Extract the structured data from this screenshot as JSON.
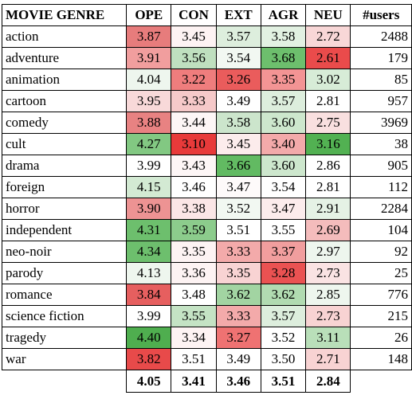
{
  "table": {
    "headers": [
      "MOVIE GENRE",
      "OPE",
      "CON",
      "EXT",
      "AGR",
      "NEU",
      "#users"
    ],
    "rows": [
      {
        "genre": "action",
        "values": [
          "3.87",
          "3.45",
          "3.57",
          "3.58",
          "2.72"
        ],
        "users": "2488",
        "colors": [
          "#e77c7c",
          "#fdf3f3",
          "#ddeedd",
          "#e2f1e2",
          "#f8d7d7"
        ]
      },
      {
        "genre": "adventure",
        "values": [
          "3.91",
          "3.56",
          "3.54",
          "3.68",
          "2.61"
        ],
        "users": "179",
        "colors": [
          "#f19e9e",
          "#bfe0bf",
          "#f2f8f2",
          "#6dbf6d",
          "#ea4b4b"
        ]
      },
      {
        "genre": "animation",
        "values": [
          "4.04",
          "3.22",
          "3.26",
          "3.35",
          "3.02"
        ],
        "users": "85",
        "colors": [
          "#eef6ee",
          "#ef7d7d",
          "#ea5c5c",
          "#f39494",
          "#d7ecd7"
        ]
      },
      {
        "genre": "cartoon",
        "values": [
          "3.95",
          "3.33",
          "3.49",
          "3.57",
          "2.81"
        ],
        "users": "957",
        "colors": [
          "#f8d9d9",
          "#f6c9c9",
          "#ffffff",
          "#ddeedd",
          "#ffffff"
        ]
      },
      {
        "genre": "comedy",
        "values": [
          "3.88",
          "3.44",
          "3.58",
          "3.60",
          "2.75"
        ],
        "users": "3969",
        "colors": [
          "#e88282",
          "#fdf6f6",
          "#cce5cc",
          "#cde7cd",
          "#f9e0e0"
        ]
      },
      {
        "genre": "cult",
        "values": [
          "4.27",
          "3.10",
          "3.45",
          "3.40",
          "3.16"
        ],
        "users": "38",
        "colors": [
          "#82c882",
          "#e83a3a",
          "#fcecec",
          "#f3aaaa",
          "#52b152"
        ]
      },
      {
        "genre": "drama",
        "values": [
          "3.99",
          "3.43",
          "3.66",
          "3.60",
          "2.86"
        ],
        "users": "905",
        "colors": [
          "#ffffff",
          "#fdf6f6",
          "#62ba62",
          "#cde7cd",
          "#ffffff"
        ]
      },
      {
        "genre": "foreign",
        "values": [
          "4.15",
          "3.46",
          "3.47",
          "3.54",
          "2.81"
        ],
        "users": "112",
        "colors": [
          "#d3ead3",
          "#ffffff",
          "#fefafa",
          "#ffffff",
          "#ffffff"
        ]
      },
      {
        "genre": "horror",
        "values": [
          "3.90",
          "3.38",
          "3.52",
          "3.47",
          "2.91"
        ],
        "users": "2284",
        "colors": [
          "#ed9393",
          "#fbe6e6",
          "#f2f8f2",
          "#fcecec",
          "#e5f2e5"
        ]
      },
      {
        "genre": "independent",
        "values": [
          "4.31",
          "3.59",
          "3.51",
          "3.55",
          "2.69"
        ],
        "users": "104",
        "colors": [
          "#6dbf6d",
          "#8ccc8c",
          "#ffffff",
          "#ffffff",
          "#f4bcbc"
        ]
      },
      {
        "genre": "neo-noir",
        "values": [
          "4.34",
          "3.35",
          "3.33",
          "3.37",
          "2.97"
        ],
        "users": "92",
        "colors": [
          "#6dbf6d",
          "#fdf3f3",
          "#f3aaaa",
          "#f19e9e",
          "#eef6ee"
        ]
      },
      {
        "genre": "parody",
        "values": [
          "4.13",
          "3.36",
          "3.35",
          "3.28",
          "2.73"
        ],
        "users": "25",
        "colors": [
          "#eef6ee",
          "#fdf3f3",
          "#f8d3d3",
          "#ea5252",
          "#fae3e3"
        ]
      },
      {
        "genre": "romance",
        "values": [
          "3.84",
          "3.48",
          "3.62",
          "3.62",
          "2.85"
        ],
        "users": "776",
        "colors": [
          "#e65f5f",
          "#ffffff",
          "#a2d4a2",
          "#b1dbb1",
          "#eef6ee"
        ]
      },
      {
        "genre": "science fiction",
        "values": [
          "3.99",
          "3.55",
          "3.33",
          "3.57",
          "2.73"
        ],
        "users": "215",
        "colors": [
          "#ffffff",
          "#c4e3c4",
          "#f3aaaa",
          "#ddeedd",
          "#f8d3d3"
        ]
      },
      {
        "genre": "tragedy",
        "values": [
          "4.40",
          "3.34",
          "3.27",
          "3.52",
          "3.11"
        ],
        "users": "26",
        "colors": [
          "#4fae4f",
          "#fdf3f3",
          "#ef7272",
          "#ffffff",
          "#b9dfb9"
        ]
      },
      {
        "genre": "war",
        "values": [
          "3.82",
          "3.51",
          "3.49",
          "3.50",
          "2.71"
        ],
        "users": "148",
        "colors": [
          "#e84a4a",
          "#ffffff",
          "#ffffff",
          "#ffffff",
          "#f8d3d3"
        ]
      }
    ],
    "summary": [
      "4.05",
      "3.41",
      "3.46",
      "3.51",
      "2.84"
    ]
  }
}
